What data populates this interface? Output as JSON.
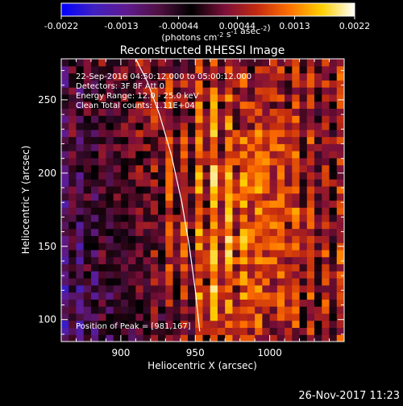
{
  "chart_data": {
    "type": "heatmap",
    "title": "Reconstructed RHESSI Image",
    "xlabel": "Heliocentric X (arcsec)",
    "ylabel": "Heliocentric Y (arcsec)",
    "xlim": [
      860,
      1050
    ],
    "ylim": [
      85,
      278
    ],
    "x_ticks": [
      900,
      950,
      1000
    ],
    "y_ticks": [
      100,
      150,
      200,
      250
    ],
    "annotations": [
      "22-Sep-2016 04:50:12.000 to 05:00:12.000",
      "Detectors: 3F 8F  Att 0",
      "Energy Range: 12.0 - 25.0 keV",
      "Clean    Total counts: 1.11E+04"
    ],
    "peak_label": "Position of Peak = [981,167]",
    "peak_position": [
      981,
      167
    ],
    "limb_curve": [
      [
        910,
        278
      ],
      [
        918,
        262
      ],
      [
        926,
        240
      ],
      [
        934,
        212
      ],
      [
        941,
        180
      ],
      [
        946,
        150
      ],
      [
        950,
        120
      ],
      [
        953,
        92
      ]
    ],
    "colorbar": {
      "min": -0.0022,
      "max": 0.0022,
      "ticks": [
        "-0.0022",
        "-0.0013",
        "-0.00044",
        "0.00044",
        "0.0013",
        "0.0022"
      ],
      "unit_label": "(photons cm-2 s-1 asec-2)",
      "colormap": [
        "#0000ff",
        "#4020c0",
        "#601a90",
        "#501040",
        "#000000",
        "#7a0f3a",
        "#c22a10",
        "#ff7000",
        "#ffd000",
        "#ffffff"
      ]
    },
    "grid": false,
    "image_grid": {
      "cols": 38,
      "rows": 40,
      "cell_arcsec": [
        5,
        5
      ],
      "model": "vertical striped clean image; mean field falls off toward negative beyond the limb (x < 945) and peaks near [981,167]"
    }
  },
  "footer": {
    "timestamp": "26-Nov-2017 11:23"
  }
}
